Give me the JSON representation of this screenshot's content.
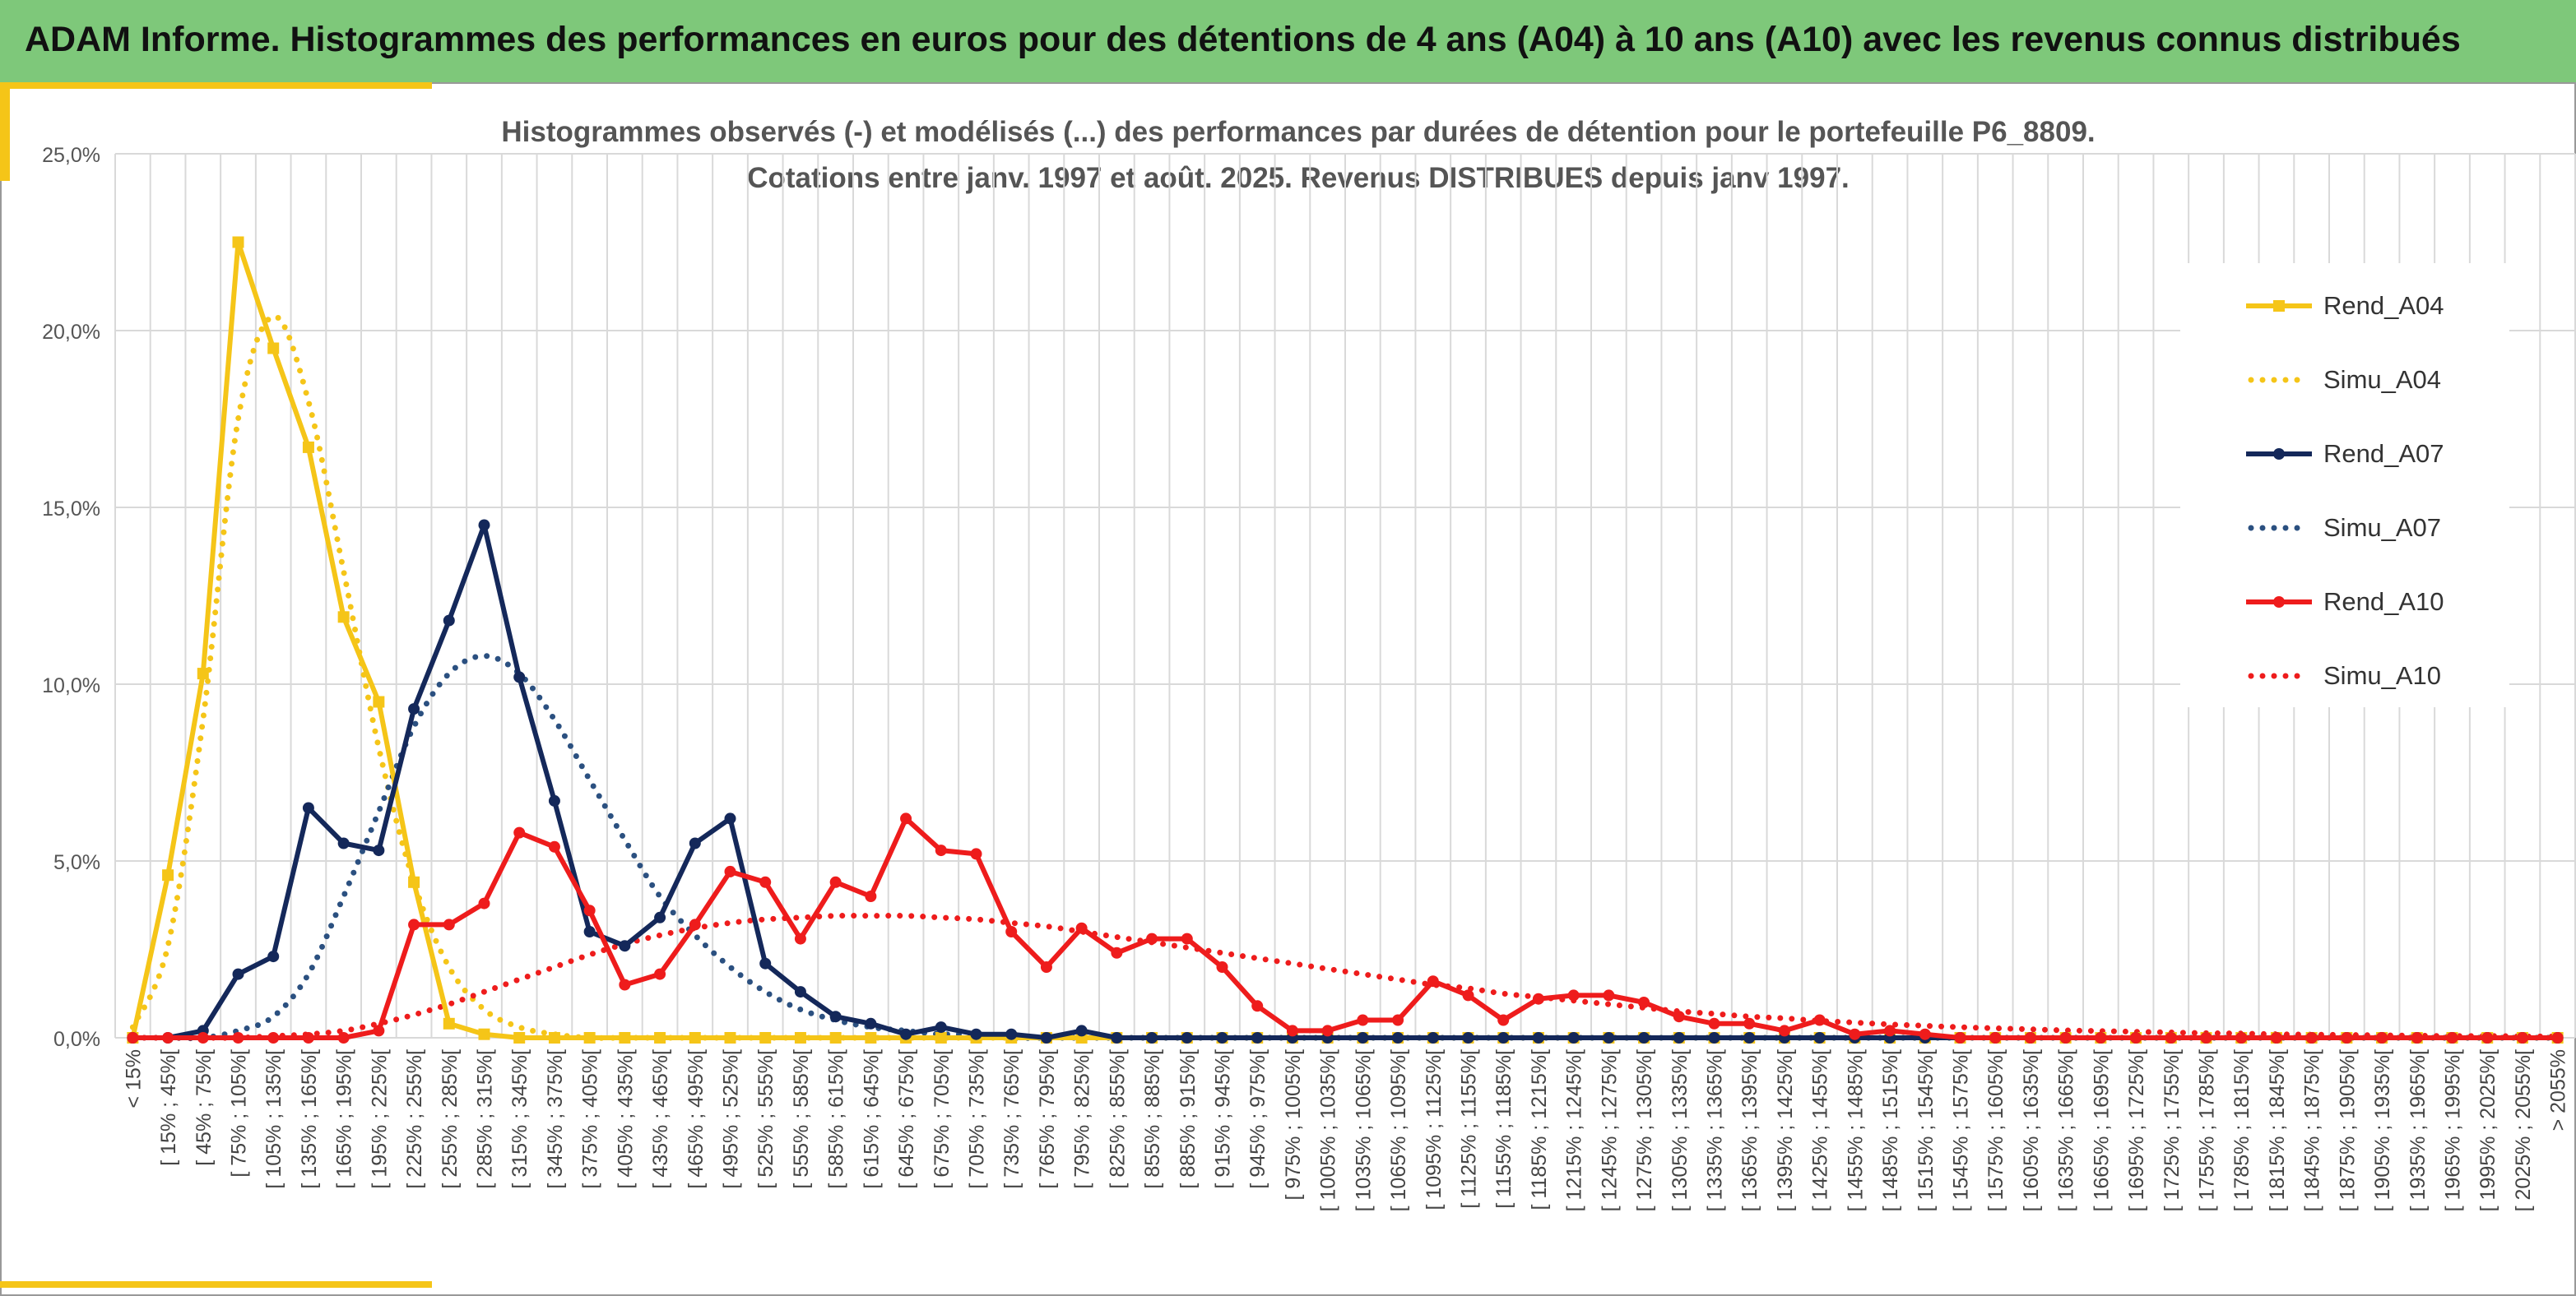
{
  "header": {
    "title": "ADAM Informe. Histogrammes des performances en euros pour des détentions de 4 ans (A04) à 10 ans (A10) avec les revenus connus distribués"
  },
  "colors": {
    "banner": "#7ec87a",
    "yellow": "#f5c518",
    "navy": "#14285a",
    "navy_sim": "#2b5080",
    "red": "#ee1c1c",
    "grid": "#d9d9d9"
  },
  "chart_data": {
    "type": "line",
    "title": "Histogrammes observés (-) et modélisés (...) des performances par durées de détention pour le portefeuille P6_8809.",
    "subtitle": "Cotations entre janv. 1997 et août. 2025. Revenus DISTRIBUES depuis janv 1997.",
    "xlabel": "",
    "ylabel": "",
    "ylim": [
      0,
      25
    ],
    "yticks": [
      "0,0%",
      "5,0%",
      "10,0%",
      "15,0%",
      "20,0%",
      "25,0%"
    ],
    "grid": true,
    "legend_position": "right",
    "categories": [
      "< 15%",
      "[ 15% ; 45%[",
      "[ 45% ; 75%[",
      "[ 75% ; 105%[",
      "[ 105% ; 135%[",
      "[ 135% ; 165%[",
      "[ 165% ; 195%[",
      "[ 195% ; 225%[",
      "[ 225% ; 255%[",
      "[ 255% ; 285%[",
      "[ 285% ; 315%[",
      "[ 315% ; 345%[",
      "[ 345% ; 375%[",
      "[ 375% ; 405%[",
      "[ 405% ; 435%[",
      "[ 435% ; 465%[",
      "[ 465% ; 495%[",
      "[ 495% ; 525%[",
      "[ 525% ; 555%[",
      "[ 555% ; 585%[",
      "[ 585% ; 615%[",
      "[ 615% ; 645%[",
      "[ 645% ; 675%[",
      "[ 675% ; 705%[",
      "[ 705% ; 735%[",
      "[ 735% ; 765%[",
      "[ 765% ; 795%[",
      "[ 795% ; 825%[",
      "[ 825% ; 855%[",
      "[ 855% ; 885%[",
      "[ 885% ; 915%[",
      "[ 915% ; 945%[",
      "[ 945% ; 975%[",
      "[ 975% ; 1005%[",
      "[ 1005% ; 1035%[",
      "[ 1035% ; 1065%[",
      "[ 1065% ; 1095%[",
      "[ 1095% ; 1125%[",
      "[ 1125% ; 1155%[",
      "[ 1155% ; 1185%[",
      "[ 1185% ; 1215%[",
      "[ 1215% ; 1245%[",
      "[ 1245% ; 1275%[",
      "[ 1275% ; 1305%[",
      "[ 1305% ; 1335%[",
      "[ 1335% ; 1365%[",
      "[ 1365% ; 1395%[",
      "[ 1395% ; 1425%[",
      "[ 1425% ; 1455%[",
      "[ 1455% ; 1485%[",
      "[ 1485% ; 1515%[",
      "[ 1515% ; 1545%[",
      "[ 1545% ; 1575%[",
      "[ 1575% ; 1605%[",
      "[ 1605% ; 1635%[",
      "[ 1635% ; 1665%[",
      "[ 1665% ; 1695%[",
      "[ 1695% ; 1725%[",
      "[ 1725% ; 1755%[",
      "[ 1755% ; 1785%[",
      "[ 1785% ; 1815%[",
      "[ 1815% ; 1845%[",
      "[ 1845% ; 1875%[",
      "[ 1875% ; 1905%[",
      "[ 1905% ; 1935%[",
      "[ 1935% ; 1965%[",
      "[ 1965% ; 1995%[",
      "[ 1995% ; 2025%[",
      "[ 2025% ; 2055%[",
      "> 2055%"
    ],
    "series": [
      {
        "name": "Rend_A04",
        "style": "solid",
        "marker": "square",
        "color": "#f5c518",
        "values": [
          0.0,
          4.6,
          10.3,
          22.5,
          19.5,
          16.7,
          11.9,
          9.5,
          4.4,
          0.4,
          0.1,
          0.0,
          0.0,
          0.0,
          0.0,
          0.0,
          0.0,
          0.0,
          0.0,
          0.0,
          0.0,
          0.0,
          0.0,
          0.0,
          0.0,
          0.0,
          0.0,
          0.0,
          0.0,
          0.0,
          0.0,
          0.0,
          0.0,
          0.0,
          0.0,
          0.0,
          0.0,
          0.0,
          0.0,
          0.0,
          0.0,
          0.0,
          0.0,
          0.0,
          0.0,
          0.0,
          0.0,
          0.0,
          0.0,
          0.0,
          0.0,
          0.0,
          0.0,
          0.0,
          0.0,
          0.0,
          0.0,
          0.0,
          0.0,
          0.0,
          0.0,
          0.0,
          0.0,
          0.0,
          0.0,
          0.0,
          0.0,
          0.0,
          0.0,
          0.0
        ]
      },
      {
        "name": "Simu_A04",
        "style": "dotted",
        "marker": "none",
        "color": "#f5c518",
        "values": [
          0.3,
          2.6,
          9.0,
          17.5,
          20.4,
          18.0,
          13.2,
          8.2,
          4.4,
          2.0,
          0.8,
          0.3,
          0.1,
          0.0,
          0.0,
          0.0,
          0.0,
          0.0,
          0.0,
          0.0,
          0.0,
          0.0,
          0.0,
          0.0,
          0.0,
          0.0,
          0.0,
          0.0,
          0.0,
          0.0,
          0.0,
          0.0,
          0.0,
          0.0,
          0.0,
          0.0,
          0.0,
          0.0,
          0.0,
          0.0,
          0.0,
          0.0,
          0.0,
          0.0,
          0.0,
          0.0,
          0.0,
          0.0,
          0.0,
          0.0,
          0.0,
          0.0,
          0.0,
          0.0,
          0.0,
          0.0,
          0.0,
          0.0,
          0.0,
          0.0,
          0.0,
          0.0,
          0.0,
          0.0,
          0.0,
          0.0,
          0.0,
          0.0,
          0.0,
          0.0
        ]
      },
      {
        "name": "Rend_A07",
        "style": "solid",
        "marker": "circle",
        "color": "#14285a",
        "values": [
          0.0,
          0.0,
          0.2,
          1.8,
          2.3,
          6.5,
          5.5,
          5.3,
          9.3,
          11.8,
          14.5,
          10.2,
          6.7,
          3.0,
          2.6,
          3.4,
          5.5,
          6.2,
          2.1,
          1.3,
          0.6,
          0.4,
          0.1,
          0.3,
          0.1,
          0.1,
          0.0,
          0.2,
          0.0,
          0.0,
          0.0,
          0.0,
          0.0,
          0.0,
          0.0,
          0.0,
          0.0,
          0.0,
          0.0,
          0.0,
          0.0,
          0.0,
          0.0,
          0.0,
          0.0,
          0.0,
          0.0,
          0.0,
          0.0,
          0.0,
          0.0,
          0.0,
          0.0,
          0.0,
          0.0,
          0.0,
          0.0,
          0.0,
          0.0,
          0.0,
          0.0,
          0.0,
          0.0,
          0.0,
          0.0,
          0.0,
          0.0,
          0.0,
          0.0,
          0.0
        ]
      },
      {
        "name": "Simu_A07",
        "style": "dotted",
        "marker": "none",
        "color": "#2b5080",
        "values": [
          0.0,
          0.0,
          0.0,
          0.2,
          0.6,
          1.8,
          4.0,
          6.4,
          8.8,
          10.3,
          10.8,
          10.3,
          9.0,
          7.3,
          5.6,
          4.0,
          2.9,
          2.0,
          1.3,
          0.8,
          0.5,
          0.3,
          0.2,
          0.1,
          0.1,
          0.0,
          0.0,
          0.0,
          0.0,
          0.0,
          0.0,
          0.0,
          0.0,
          0.0,
          0.0,
          0.0,
          0.0,
          0.0,
          0.0,
          0.0,
          0.0,
          0.0,
          0.0,
          0.0,
          0.0,
          0.0,
          0.0,
          0.0,
          0.0,
          0.0,
          0.0,
          0.0,
          0.0,
          0.0,
          0.0,
          0.0,
          0.0,
          0.0,
          0.0,
          0.0,
          0.0,
          0.0,
          0.0,
          0.0,
          0.0,
          0.0,
          0.0,
          0.0,
          0.0,
          0.0
        ]
      },
      {
        "name": "Rend_A10",
        "style": "solid",
        "marker": "circle",
        "color": "#ee1c1c",
        "values": [
          0.0,
          0.0,
          0.0,
          0.0,
          0.0,
          0.0,
          0.0,
          0.2,
          3.2,
          3.2,
          3.8,
          5.8,
          5.4,
          3.6,
          1.5,
          1.8,
          3.2,
          4.7,
          4.4,
          2.8,
          4.4,
          4.0,
          6.2,
          5.3,
          5.2,
          3.0,
          2.0,
          3.1,
          2.4,
          2.8,
          2.8,
          2.0,
          0.9,
          0.2,
          0.2,
          0.5,
          0.5,
          1.6,
          1.2,
          0.5,
          1.1,
          1.2,
          1.2,
          1.0,
          0.6,
          0.4,
          0.4,
          0.2,
          0.5,
          0.1,
          0.2,
          0.1,
          0.0,
          0.0,
          0.0,
          0.0,
          0.0,
          0.0,
          0.0,
          0.0,
          0.0,
          0.0,
          0.0,
          0.0,
          0.0,
          0.0,
          0.0,
          0.0,
          0.0,
          0.0
        ]
      },
      {
        "name": "Simu_A10",
        "style": "dotted",
        "marker": "none",
        "color": "#ee1c1c",
        "values": [
          0.0,
          0.0,
          0.0,
          0.0,
          0.05,
          0.1,
          0.2,
          0.4,
          0.65,
          0.95,
          1.3,
          1.65,
          2.0,
          2.35,
          2.65,
          2.9,
          3.1,
          3.25,
          3.35,
          3.4,
          3.45,
          3.45,
          3.45,
          3.4,
          3.35,
          3.25,
          3.15,
          3.0,
          2.85,
          2.7,
          2.55,
          2.4,
          2.25,
          2.1,
          1.95,
          1.8,
          1.65,
          1.5,
          1.4,
          1.25,
          1.15,
          1.05,
          0.95,
          0.85,
          0.75,
          0.68,
          0.6,
          0.55,
          0.48,
          0.43,
          0.38,
          0.34,
          0.3,
          0.27,
          0.24,
          0.21,
          0.19,
          0.17,
          0.15,
          0.13,
          0.12,
          0.1,
          0.09,
          0.08,
          0.07,
          0.06,
          0.05,
          0.05,
          0.04,
          0.04
        ]
      }
    ]
  }
}
